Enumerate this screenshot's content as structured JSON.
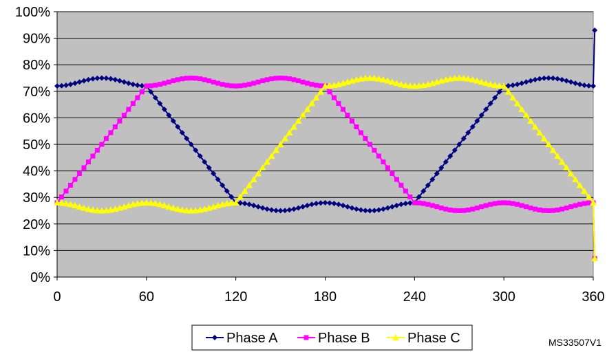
{
  "chart_data": {
    "type": "line",
    "title": "",
    "xlabel": "",
    "ylabel": "",
    "xlim": [
      0,
      360
    ],
    "ylim": [
      0,
      100
    ],
    "x_ticks": [
      0,
      60,
      120,
      180,
      240,
      300,
      360
    ],
    "x_tick_labels": [
      "0",
      "60",
      "120",
      "180",
      "240",
      "300",
      "360"
    ],
    "y_ticks": [
      0,
      10,
      20,
      30,
      40,
      50,
      60,
      70,
      80,
      90,
      100
    ],
    "y_tick_labels": [
      "0%",
      "10%",
      "20%",
      "30%",
      "40%",
      "50%",
      "60%",
      "70%",
      "80%",
      "90%",
      "100%"
    ],
    "grid": "horizontal",
    "plot_background": "#c0c0c0",
    "legend_position": "bottom",
    "x": [
      0,
      30,
      60,
      90,
      120,
      150,
      180,
      210,
      240,
      270,
      300,
      330,
      360
    ],
    "series": [
      {
        "name": "Phase A",
        "color": "#000080",
        "marker": "diamond",
        "values": [
          72,
          75,
          72,
          50,
          28,
          25,
          28,
          25,
          28,
          50,
          72,
          75,
          72
        ],
        "end_point": {
          "x": 361,
          "y": 93
        }
      },
      {
        "name": "Phase B",
        "color": "#ff00ff",
        "marker": "square",
        "values": [
          28,
          50,
          72,
          75,
          72,
          75,
          72,
          50,
          28,
          25,
          28,
          25,
          28
        ],
        "end_point": {
          "x": 361,
          "y": 7
        }
      },
      {
        "name": "Phase C",
        "color": "#ffff00",
        "marker": "triangle",
        "values": [
          28,
          25,
          28,
          25,
          28,
          50,
          72,
          75,
          72,
          75,
          72,
          50,
          28
        ],
        "end_point": {
          "x": 361,
          "y": 7
        }
      }
    ]
  },
  "watermark": "MS33507V1"
}
